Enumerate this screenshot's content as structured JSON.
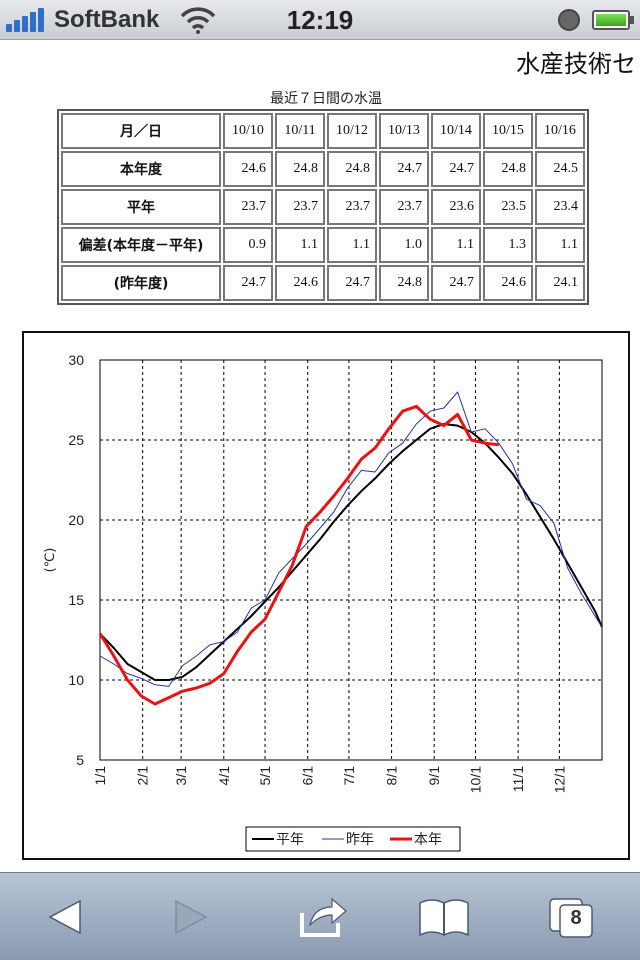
{
  "status_bar": {
    "carrier": "SoftBank",
    "time": "12:19",
    "icons": [
      "signal-icon",
      "wifi-icon",
      "rotation-lock-icon",
      "battery-icon"
    ]
  },
  "header": {
    "site_title": "水産技術セ"
  },
  "table": {
    "caption": "最近７日間の水温",
    "header_label": "月／日",
    "dates": [
      "10/10",
      "10/11",
      "10/12",
      "10/13",
      "10/14",
      "10/15",
      "10/16"
    ],
    "rows": [
      {
        "label": "本年度",
        "values": [
          "24.6",
          "24.8",
          "24.8",
          "24.7",
          "24.7",
          "24.8",
          "24.5"
        ]
      },
      {
        "label": "平年",
        "values": [
          "23.7",
          "23.7",
          "23.7",
          "23.7",
          "23.6",
          "23.5",
          "23.4"
        ]
      },
      {
        "label": "偏差(本年度－平年)",
        "values": [
          "0.9",
          "1.1",
          "1.1",
          "1.0",
          "1.1",
          "1.3",
          "1.1"
        ]
      },
      {
        "label": "(昨年度)",
        "values": [
          "24.7",
          "24.6",
          "24.7",
          "24.8",
          "24.7",
          "24.6",
          "24.1"
        ]
      }
    ]
  },
  "chart_data": {
    "type": "line",
    "ylabel": "(℃)",
    "ylim": [
      5,
      30
    ],
    "yticks": [
      "30",
      "25",
      "20",
      "15",
      "10",
      "5"
    ],
    "x_tick_labels": [
      "1/1",
      "2/1",
      "3/1",
      "4/1",
      "5/1",
      "6/1",
      "7/1",
      "8/1",
      "9/1",
      "10/1",
      "11/1",
      "12/1"
    ],
    "grid": true,
    "legend_placement": "bottom",
    "series": [
      {
        "name": "平年",
        "color": "#000000",
        "points": [
          [
            0,
            12.9
          ],
          [
            10,
            12.0
          ],
          [
            20,
            11.0
          ],
          [
            30,
            10.5
          ],
          [
            40,
            10.0
          ],
          [
            50,
            10.0
          ],
          [
            60,
            10.2
          ],
          [
            70,
            10.8
          ],
          [
            80,
            11.6
          ],
          [
            90,
            12.4
          ],
          [
            100,
            13.2
          ],
          [
            110,
            14.0
          ],
          [
            120,
            14.9
          ],
          [
            130,
            15.8
          ],
          [
            140,
            16.8
          ],
          [
            150,
            17.8
          ],
          [
            160,
            18.8
          ],
          [
            170,
            19.9
          ],
          [
            180,
            20.9
          ],
          [
            190,
            21.8
          ],
          [
            200,
            22.6
          ],
          [
            210,
            23.5
          ],
          [
            220,
            24.3
          ],
          [
            230,
            25.0
          ],
          [
            240,
            25.7
          ],
          [
            250,
            26.0
          ],
          [
            260,
            25.9
          ],
          [
            270,
            25.5
          ],
          [
            280,
            24.8
          ],
          [
            290,
            23.9
          ],
          [
            300,
            22.9
          ],
          [
            310,
            21.6
          ],
          [
            320,
            20.2
          ],
          [
            330,
            18.8
          ],
          [
            340,
            17.3
          ],
          [
            350,
            15.8
          ],
          [
            360,
            14.3
          ],
          [
            365,
            13.3
          ]
        ]
      },
      {
        "name": "昨年",
        "color": "#2233aa",
        "points": [
          [
            0,
            11.5
          ],
          [
            10,
            11.0
          ],
          [
            20,
            10.4
          ],
          [
            30,
            10.1
          ],
          [
            40,
            9.7
          ],
          [
            50,
            9.6
          ],
          [
            60,
            10.9
          ],
          [
            70,
            11.5
          ],
          [
            80,
            12.2
          ],
          [
            90,
            12.4
          ],
          [
            100,
            13.0
          ],
          [
            110,
            14.5
          ],
          [
            120,
            15.0
          ],
          [
            130,
            16.7
          ],
          [
            140,
            17.6
          ],
          [
            150,
            18.5
          ],
          [
            160,
            19.5
          ],
          [
            170,
            20.5
          ],
          [
            180,
            22.0
          ],
          [
            190,
            23.1
          ],
          [
            200,
            23.0
          ],
          [
            210,
            24.2
          ],
          [
            220,
            24.8
          ],
          [
            230,
            26.0
          ],
          [
            240,
            26.8
          ],
          [
            250,
            27.0
          ],
          [
            260,
            28.0
          ],
          [
            270,
            25.5
          ],
          [
            280,
            25.7
          ],
          [
            290,
            24.8
          ],
          [
            300,
            23.5
          ],
          [
            310,
            21.3
          ],
          [
            320,
            20.9
          ],
          [
            330,
            19.8
          ],
          [
            340,
            17.0
          ],
          [
            350,
            15.4
          ],
          [
            360,
            14.0
          ],
          [
            365,
            13.3
          ]
        ]
      },
      {
        "name": "本年",
        "color": "#ee1111",
        "points": [
          [
            0,
            12.9
          ],
          [
            10,
            11.5
          ],
          [
            20,
            10.0
          ],
          [
            30,
            9.0
          ],
          [
            40,
            8.5
          ],
          [
            50,
            8.9
          ],
          [
            60,
            9.3
          ],
          [
            70,
            9.5
          ],
          [
            80,
            9.8
          ],
          [
            90,
            10.4
          ],
          [
            100,
            11.8
          ],
          [
            110,
            13.0
          ],
          [
            120,
            13.8
          ],
          [
            130,
            15.5
          ],
          [
            140,
            17.2
          ],
          [
            150,
            19.6
          ],
          [
            160,
            20.5
          ],
          [
            170,
            21.5
          ],
          [
            180,
            22.6
          ],
          [
            190,
            23.8
          ],
          [
            200,
            24.5
          ],
          [
            210,
            25.7
          ],
          [
            220,
            26.8
          ],
          [
            230,
            27.1
          ],
          [
            240,
            26.3
          ],
          [
            250,
            25.9
          ],
          [
            260,
            26.6
          ],
          [
            270,
            25.0
          ],
          [
            280,
            24.8
          ],
          [
            290,
            24.7
          ]
        ]
      }
    ]
  },
  "toolbar": {
    "tab_count": "8"
  }
}
